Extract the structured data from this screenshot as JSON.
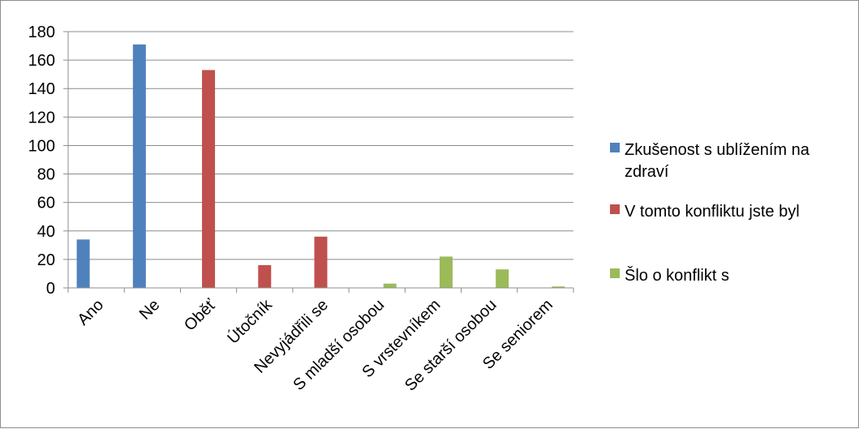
{
  "chart_data": {
    "type": "bar",
    "categories": [
      "Ano",
      "Ne",
      "Oběť",
      "Útočník",
      "Nevyjádřili se",
      "S mladší osobou",
      "S vrstevníkem",
      "Se starší osobou",
      "Se seniorem"
    ],
    "series": [
      {
        "name": "Zkušenost s ublížením na zdraví",
        "legend_lines": [
          "Zkušenost s ublížením na",
          "zdraví"
        ],
        "color": "#4f81bd",
        "values": [
          34,
          171,
          0,
          0,
          0,
          0,
          0,
          0,
          0
        ]
      },
      {
        "name": "V tomto konfliktu jste byl",
        "legend_lines": [
          "V tomto konfliktu jste byl"
        ],
        "color": "#c0504d",
        "values": [
          0,
          0,
          153,
          16,
          36,
          0,
          0,
          0,
          0
        ]
      },
      {
        "name": "Šlo o konflikt s",
        "legend_lines": [
          "Šlo o konflikt s"
        ],
        "color": "#9bbb59",
        "values": [
          0,
          0,
          0,
          0,
          0,
          3,
          22,
          13,
          1
        ]
      }
    ],
    "ylim": [
      0,
      180
    ],
    "yticks": [
      0,
      20,
      40,
      60,
      80,
      100,
      120,
      140,
      160,
      180
    ],
    "grid": true,
    "legend_position": "right"
  }
}
